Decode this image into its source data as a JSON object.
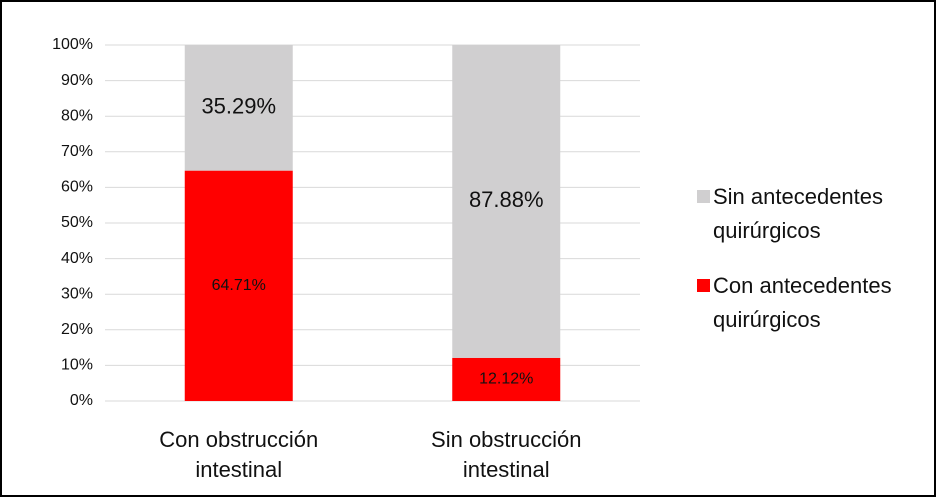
{
  "chart_data": {
    "type": "stacked_bar",
    "categories": [
      "Con obstrucción intestinal",
      "Sin obstrucción intestinal"
    ],
    "series": [
      {
        "name": "Con antecedentes quirúrgicos",
        "color": "#ff0000",
        "values": [
          64.71,
          12.12
        ],
        "value_labels": [
          "64.71%",
          "12.12%"
        ]
      },
      {
        "name": "Sin antecedentes quirúrgicos",
        "color": "#d0cfd0",
        "values": [
          35.29,
          87.88
        ],
        "value_labels": [
          "35.29%",
          "87.88%"
        ]
      }
    ],
    "ylim": [
      0,
      100
    ],
    "yticks": [
      {
        "value": 0,
        "label": "0%"
      },
      {
        "value": 10,
        "label": "10%"
      },
      {
        "value": 20,
        "label": "20%"
      },
      {
        "value": 30,
        "label": "30%"
      },
      {
        "value": 40,
        "label": "40%"
      },
      {
        "value": 50,
        "label": "50%"
      },
      {
        "value": 60,
        "label": "60%"
      },
      {
        "value": 70,
        "label": "70%"
      },
      {
        "value": 80,
        "label": "80%"
      },
      {
        "value": 90,
        "label": "90%"
      },
      {
        "value": 100,
        "label": "100%"
      }
    ],
    "grid": true,
    "legend": "right"
  }
}
